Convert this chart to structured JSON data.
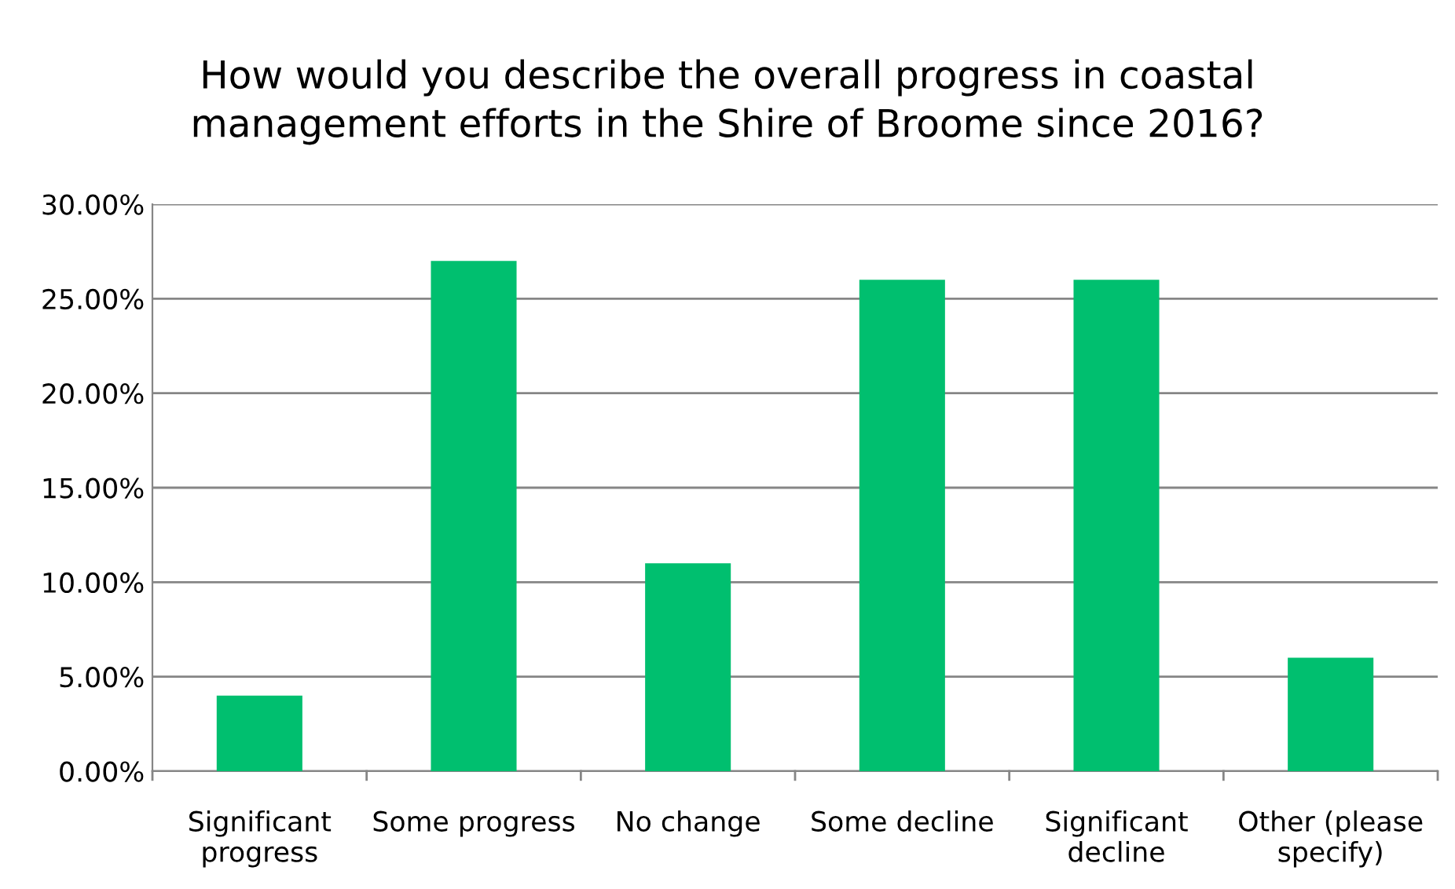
{
  "chart_data": {
    "type": "bar",
    "title": "How would you describe the overall progress in coastal\nmanagement efforts in the Shire of Broome since 2016?",
    "categories": [
      "Significant\nprogress",
      "Some progress",
      "No change",
      "Some decline",
      "Significant\ndecline",
      "Other (please\nspecify)"
    ],
    "values": [
      4,
      27,
      11,
      26,
      26,
      6
    ],
    "color": "#00bf6f",
    "ylim": [
      0,
      30
    ],
    "yticks": [
      {
        "value": 0,
        "label": "0.00%"
      },
      {
        "value": 5,
        "label": "5.00%"
      },
      {
        "value": 10,
        "label": "10.00%"
      },
      {
        "value": 15,
        "label": "15.00%"
      },
      {
        "value": 20,
        "label": "20.00%"
      },
      {
        "value": 25,
        "label": "25.00%"
      },
      {
        "value": 30,
        "label": "30.00%"
      }
    ],
    "grid": "y"
  }
}
